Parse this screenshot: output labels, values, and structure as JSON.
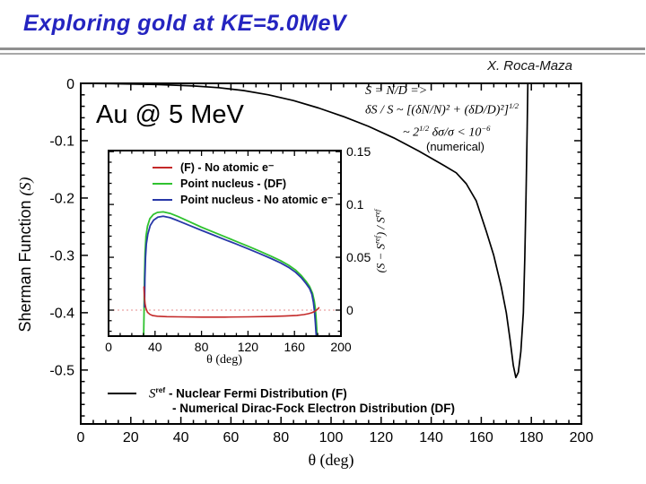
{
  "page": {
    "title": "Exploring gold at KE=5.0MeV",
    "author": "X. Roca-Maza"
  },
  "colors": {
    "title": "#2424c0",
    "rule": "#8f8f8f",
    "main_curve": "#000000",
    "red_curve": "#c42828",
    "green_curve": "#2fc22f",
    "blue_curve": "#2838a8",
    "zero_dotted_line": "#eaa4a4"
  },
  "main_plot": {
    "corner_label": "Au @ 5 MeV",
    "xlabel": "θ (deg)",
    "ylabel_text": "Sherman Function ",
    "ylabel_symbol": "(S)"
  },
  "annotation": {
    "line1": "S = N/D =>",
    "line2_main": "δS / S ~ [(δN/N)² + (δD/D)²]",
    "line2_sup": "1/2",
    "line3_a": "~ 2",
    "line3_sup1": "1/2",
    "line3_b": " δσ/σ < 10",
    "line3_sup2": "−6",
    "line4": "(numerical)"
  },
  "bottom_legend": {
    "symbol": "S",
    "symbol_sup": "ref",
    "line1": " - Nuclear Fermi Distribution (F)",
    "line2": "- Numerical Dirac-Fock Electron Distribution (DF)"
  },
  "inset": {
    "xlabel": "θ (deg)",
    "ylabel_a": "(S − S",
    "ylabel_sup1": "ref",
    "ylabel_b": ") / S",
    "ylabel_sup2": "ref",
    "legend": [
      {
        "label": "(F) - No atomic e⁻"
      },
      {
        "label": "Point nucleus - (DF)"
      },
      {
        "label": "Point nucleus - No atomic e⁻"
      }
    ]
  },
  "chart_data": [
    {
      "id": "main",
      "type": "line",
      "title": "Au @ 5 MeV",
      "xlabel": "θ (deg)",
      "ylabel": "Sherman Function (S)",
      "xlim": [
        0,
        200
      ],
      "ylim": [
        -0.594,
        0
      ],
      "x_major_ticks": [
        0,
        20,
        40,
        60,
        80,
        100,
        120,
        140,
        160,
        180,
        200
      ],
      "x_tick_labels": [
        "0",
        "20",
        "40",
        "60",
        "80",
        "100",
        "120",
        "140",
        "160",
        "180",
        "200"
      ],
      "x_minor_step": 5,
      "y_major_ticks": [
        0,
        -0.1,
        -0.2,
        -0.3,
        -0.4,
        -0.5
      ],
      "y_tick_labels": [
        "0",
        "-0.1",
        "-0.2",
        "-0.3",
        "-0.4",
        "-0.5"
      ],
      "y_minor_step": 0.02,
      "grid": false,
      "zero_line": false,
      "annotations": [
        "S = N/D => δS/S ~ [(δN/N)² + (δD/D)²]^1/2",
        "~ 2^1/2 δσ/σ < 10^−6 (numerical)"
      ],
      "series": [
        {
          "sid": "sref",
          "name": "S_ref - Nuclear Fermi Distribution (F) - Numerical Dirac-Fock Electron Distribution (DF)",
          "color": "#000000",
          "width": 1.7,
          "points": [
            [
              0,
              0
            ],
            [
              15,
              -0.0008
            ],
            [
              30,
              -0.002
            ],
            [
              45,
              -0.0045
            ],
            [
              55,
              -0.0075
            ],
            [
              65,
              -0.0125
            ],
            [
              75,
              -0.02
            ],
            [
              85,
              -0.03
            ],
            [
              95,
              -0.043
            ],
            [
              105,
              -0.058
            ],
            [
              115,
              -0.075
            ],
            [
              125,
              -0.095
            ],
            [
              135,
              -0.118
            ],
            [
              145,
              -0.143
            ],
            [
              150,
              -0.156
            ],
            [
              154,
              -0.175
            ],
            [
              158,
              -0.205
            ],
            [
              162,
              -0.258
            ],
            [
              165,
              -0.3
            ],
            [
              168,
              -0.355
            ],
            [
              170,
              -0.4
            ],
            [
              171.5,
              -0.447
            ],
            [
              172.8,
              -0.492
            ],
            [
              173.8,
              -0.513
            ],
            [
              174.8,
              -0.504
            ],
            [
              175.8,
              -0.468
            ],
            [
              176.8,
              -0.4
            ],
            [
              177.4,
              -0.305
            ],
            [
              177.9,
              -0.195
            ],
            [
              178.3,
              -0.085
            ],
            [
              178.6,
              0
            ]
          ]
        }
      ]
    },
    {
      "id": "inset",
      "type": "line",
      "title": "",
      "xlabel": "θ (deg)",
      "ylabel": "(S − S^ref) / S^ref",
      "xlim": [
        0,
        200
      ],
      "ylim": [
        -0.0246,
        0.151
      ],
      "x_major_ticks": [
        0,
        40,
        80,
        120,
        160,
        200
      ],
      "x_tick_labels": [
        "0",
        "40",
        "80",
        "120",
        "160",
        "200"
      ],
      "x_minor_step": 10,
      "y_major_ticks": [
        0,
        0.05,
        0.1,
        0.15
      ],
      "y_tick_labels": [
        "0",
        "0.05",
        "0.1",
        "0.15"
      ],
      "y_minor_step": 0.01,
      "grid": false,
      "zero_line": true,
      "legend_position": "top-left",
      "series": [
        {
          "sid": "green",
          "name": "Point nucleus - (DF)",
          "color": "#2fc22f",
          "width": 1.8,
          "points": [
            [
              30.2,
              -0.0246
            ],
            [
              30.5,
              -0.005
            ],
            [
              30.9,
              0.03
            ],
            [
              31.4,
              0.055
            ],
            [
              32.2,
              0.07
            ],
            [
              33.5,
              0.0795
            ],
            [
              35.5,
              0.0865
            ],
            [
              38.5,
              0.0905
            ],
            [
              42,
              0.0925
            ],
            [
              47,
              0.093
            ],
            [
              53,
              0.0915
            ],
            [
              60,
              0.0885
            ],
            [
              70,
              0.0835
            ],
            [
              80,
              0.0785
            ],
            [
              90,
              0.074
            ],
            [
              100,
              0.0695
            ],
            [
              110,
              0.065
            ],
            [
              120,
              0.0605
            ],
            [
              130,
              0.0558
            ],
            [
              140,
              0.051
            ],
            [
              148,
              0.0468
            ],
            [
              155,
              0.0425
            ],
            [
              161,
              0.0378
            ],
            [
              166,
              0.0325
            ],
            [
              170,
              0.0272
            ],
            [
              173,
              0.0225
            ],
            [
              175.5,
              0.016
            ],
            [
              177,
              0.009
            ],
            [
              178,
              0.0015
            ],
            [
              178.8,
              -0.01
            ],
            [
              179.5,
              -0.0246
            ]
          ]
        },
        {
          "sid": "blue",
          "name": "Point nucleus - No atomic e⁻",
          "color": "#2838a8",
          "width": 1.8,
          "points": [
            [
              31,
              0.003
            ],
            [
              31.3,
              0.03
            ],
            [
              31.8,
              0.05
            ],
            [
              32.5,
              0.0625
            ],
            [
              33.8,
              0.072
            ],
            [
              35.8,
              0.08
            ],
            [
              38.8,
              0.0852
            ],
            [
              42.5,
              0.088
            ],
            [
              47,
              0.0888
            ],
            [
              53,
              0.0875
            ],
            [
              60,
              0.0845
            ],
            [
              70,
              0.08
            ],
            [
              80,
              0.0755
            ],
            [
              90,
              0.0712
            ],
            [
              100,
              0.0668
            ],
            [
              110,
              0.0625
            ],
            [
              120,
              0.058
            ],
            [
              130,
              0.0535
            ],
            [
              140,
              0.0488
            ],
            [
              148,
              0.0447
            ],
            [
              155,
              0.0405
            ],
            [
              161,
              0.0358
            ],
            [
              166,
              0.0305
            ],
            [
              170,
              0.0252
            ],
            [
              173,
              0.0205
            ],
            [
              175,
              0.015
            ],
            [
              176.3,
              0.0075
            ],
            [
              177.2,
              -0.001
            ],
            [
              178,
              -0.012
            ],
            [
              178.8,
              -0.0246
            ]
          ]
        },
        {
          "sid": "red",
          "name": "(F) - No atomic e⁻",
          "color": "#c42828",
          "width": 1.6,
          "points": [
            [
              30.4,
              0.022
            ],
            [
              30.8,
              0.013
            ],
            [
              31.4,
              0.006
            ],
            [
              32.2,
              0.0015
            ],
            [
              33.5,
              -0.002
            ],
            [
              35.5,
              -0.004
            ],
            [
              38,
              -0.0052
            ],
            [
              42,
              -0.0058
            ],
            [
              50,
              -0.0062
            ],
            [
              60,
              -0.0064
            ],
            [
              80,
              -0.0066
            ],
            [
              100,
              -0.0066
            ],
            [
              120,
              -0.0064
            ],
            [
              140,
              -0.006
            ],
            [
              152,
              -0.0056
            ],
            [
              162,
              -0.005
            ],
            [
              168,
              -0.0042
            ],
            [
              172,
              -0.0034
            ],
            [
              175,
              -0.0025
            ],
            [
              177.5,
              -0.0012
            ],
            [
              179.5,
              0.0005
            ],
            [
              181,
              0.0022
            ]
          ]
        }
      ]
    }
  ]
}
